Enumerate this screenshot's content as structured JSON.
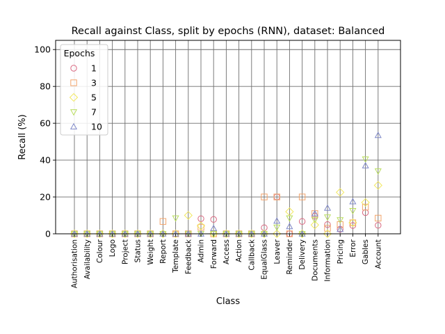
{
  "chart_data": {
    "type": "scatter",
    "title": "Recall against Class, split by epochs (RNN), dataset: Balanced",
    "xlabel": "Class",
    "ylabel": "Recall (%)",
    "ylim": [
      0,
      105
    ],
    "yticks": [
      0,
      20,
      40,
      60,
      80,
      100
    ],
    "grid": true,
    "legend": {
      "title": "Epochs",
      "placement": "top-left"
    },
    "categories": [
      "Authorisation",
      "Availability",
      "Colour",
      "Logo",
      "Project",
      "Status",
      "Weight",
      "Report",
      "Template",
      "Feedback",
      "Admin",
      "Forward",
      "Access",
      "Action",
      "Callback",
      "EqualGlass",
      "Leaver",
      "Reminder",
      "Delivery",
      "Documents",
      "Information",
      "Pricing",
      "Error",
      "Gables",
      "Account"
    ],
    "series": [
      {
        "name": "1",
        "marker": "circle",
        "color": "#d9667f",
        "values": [
          0,
          0,
          0,
          0,
          0,
          0,
          0,
          0,
          0,
          0,
          8.2,
          7.8,
          0,
          0,
          0,
          3.3,
          20,
          0,
          6.7,
          9.5,
          5,
          2.5,
          4.5,
          11.5,
          4.6
        ]
      },
      {
        "name": "3",
        "marker": "square",
        "color": "#f2a36a",
        "values": [
          0,
          0,
          0,
          0,
          0,
          0,
          0,
          6.7,
          0,
          0,
          3.5,
          0,
          0,
          0,
          0,
          20,
          20,
          0,
          20,
          11,
          3,
          5,
          6,
          14.5,
          8.5
        ]
      },
      {
        "name": "5",
        "marker": "diamond",
        "color": "#f2e85e",
        "values": [
          0,
          0,
          0,
          0,
          0,
          0,
          0,
          0,
          0,
          10,
          4.3,
          0,
          0,
          0,
          0,
          0,
          0,
          12,
          0,
          4.8,
          0,
          22.5,
          6,
          17,
          26.3
        ]
      },
      {
        "name": "7",
        "marker": "triangle-down",
        "color": "#b8dd5c",
        "values": [
          0,
          0,
          0,
          0,
          0,
          0,
          0,
          0,
          8.5,
          0,
          0,
          0,
          0,
          0,
          0,
          0,
          3.5,
          8.5,
          0,
          7.5,
          9,
          7.5,
          12.5,
          40.5,
          34
        ]
      },
      {
        "name": "10",
        "marker": "triangle-up",
        "color": "#7f88c8",
        "values": [
          0,
          0,
          0,
          0,
          0,
          0,
          0,
          0,
          0,
          0,
          0,
          3,
          0,
          0,
          0,
          0,
          7,
          4,
          0,
          11,
          14,
          2.5,
          17.5,
          37,
          53.5
        ]
      }
    ]
  }
}
